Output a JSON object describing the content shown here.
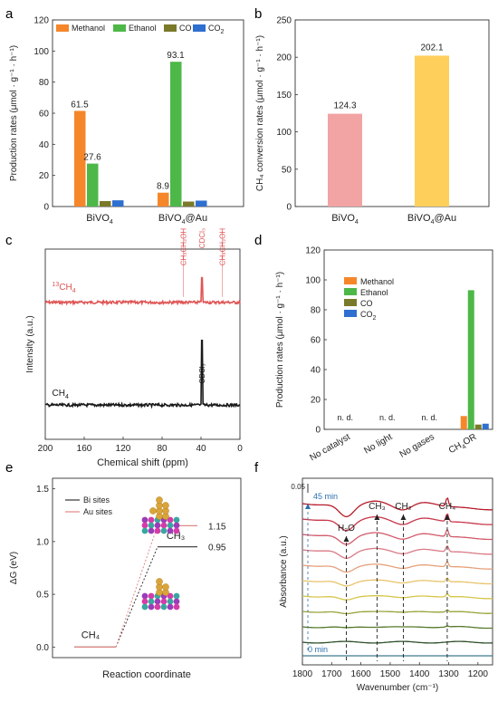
{
  "panel_labels": [
    "a",
    "b",
    "c",
    "d",
    "e",
    "f"
  ],
  "colors": {
    "methanol": "#f5872a",
    "ethanol": "#4db848",
    "co": "#7a7a2a",
    "co2": "#2f6fd0",
    "bivo4_bar": "#f2a3a3",
    "bivo4au_bar": "#ffcf5c",
    "nmr_13c": "#e05555",
    "nmr_12c": "#1a1a1a",
    "dg_bi": "#333333",
    "dg_au": "#e08888"
  },
  "chart_data": [
    {
      "id": "a",
      "type": "bar",
      "categories": [
        "BiVO4",
        "BiVO4@Au"
      ],
      "category_labels": [
        {
          "main": "BiVO",
          "sub": "4",
          "tail": ""
        },
        {
          "main": "BiVO",
          "sub": "4",
          "tail": "@Au"
        }
      ],
      "series": [
        {
          "name": "Methanol",
          "values": [
            61.5,
            8.9
          ],
          "labels": [
            "61.5",
            "8.9"
          ]
        },
        {
          "name": "Ethanol",
          "values": [
            27.6,
            93.1
          ],
          "labels": [
            "27.6",
            "93.1"
          ]
        },
        {
          "name": "CO",
          "values": [
            3.5,
            3.2
          ],
          "labels": [
            "",
            ""
          ]
        },
        {
          "name": "CO2",
          "values": [
            4.0,
            3.8
          ],
          "labels": [
            "",
            ""
          ]
        }
      ],
      "legend": [
        {
          "main": "Methanol",
          "sub": ""
        },
        {
          "main": "Ethanol",
          "sub": ""
        },
        {
          "main": "CO",
          "sub": ""
        },
        {
          "main": "CO",
          "sub": "2"
        }
      ],
      "ylabel": "Production rates (μmol · g⁻¹ · h⁻¹)",
      "ylim": [
        0,
        120
      ],
      "yticks": [
        0,
        20,
        40,
        60,
        80,
        100,
        120
      ]
    },
    {
      "id": "b",
      "type": "bar",
      "categories": [
        "BiVO4",
        "BiVO4@Au"
      ],
      "category_labels": [
        {
          "main": "BiVO",
          "sub": "4",
          "tail": ""
        },
        {
          "main": "BiVO",
          "sub": "4",
          "tail": "@Au"
        }
      ],
      "values": [
        124.3,
        202.1
      ],
      "labels": [
        "124.3",
        "202.1"
      ],
      "ylabel": "CH₄ conversion rates (μmol · g⁻¹ · h⁻¹)",
      "ylim": [
        0,
        250
      ],
      "yticks": [
        0,
        50,
        100,
        150,
        200,
        250
      ]
    },
    {
      "id": "c",
      "type": "line",
      "xlabel": "Chemical shift (ppm)",
      "ylabel": "Intensity (a.u.)",
      "xlim": [
        200,
        0
      ],
      "xticks": [
        200,
        160,
        120,
        80,
        40,
        0
      ],
      "series": [
        {
          "name": "13CH4",
          "label_sup": "13",
          "label_main": "CH",
          "label_sub": "4",
          "baseline": 0.72,
          "noise": 0.012,
          "peaks": [
            {
              "x": 39,
              "h": 0.13
            }
          ]
        },
        {
          "name": "CH4",
          "label_sup": "",
          "label_main": "CH",
          "label_sub": "4",
          "baseline": 0.18,
          "noise": 0.012,
          "peaks": [
            {
              "x": 39,
              "h": 0.34
            }
          ]
        }
      ],
      "annotations": [
        {
          "text": "CH₃CH₂OH",
          "x": 58,
          "series": 0
        },
        {
          "text": "CDCl₃",
          "x": 39,
          "series": 0
        },
        {
          "text": "CH₃CH₂OH",
          "x": 18,
          "series": 0
        },
        {
          "text": "CDCl₃",
          "x": 39,
          "series": 1
        }
      ]
    },
    {
      "id": "d",
      "type": "bar",
      "categories": [
        "No catalyst",
        "No light",
        "No gases",
        "CH4OR"
      ],
      "category_labels": [
        {
          "main": "No catalyst",
          "sub": "",
          "tail": ""
        },
        {
          "main": "No light",
          "sub": "",
          "tail": ""
        },
        {
          "main": "No gases",
          "sub": "",
          "tail": ""
        },
        {
          "main": "CH",
          "sub": "4",
          "tail": "OR"
        }
      ],
      "series": [
        {
          "name": "Methanol",
          "values": [
            0,
            0,
            0,
            8.9
          ]
        },
        {
          "name": "Ethanol",
          "values": [
            0,
            0,
            0,
            93.1
          ]
        },
        {
          "name": "CO",
          "values": [
            0,
            0,
            0,
            3.2
          ]
        },
        {
          "name": "CO2",
          "values": [
            0,
            0,
            0,
            3.8
          ]
        }
      ],
      "nd_text": "n. d.",
      "legend": [
        {
          "main": "Methanol",
          "sub": ""
        },
        {
          "main": "Ethanol",
          "sub": ""
        },
        {
          "main": "CO",
          "sub": ""
        },
        {
          "main": "CO",
          "sub": "2"
        }
      ],
      "ylabel": "Production rates (μmol · g⁻¹ · h⁻¹)",
      "ylim": [
        0,
        120
      ],
      "yticks": [
        0,
        20,
        40,
        60,
        80,
        100,
        120
      ]
    },
    {
      "id": "e",
      "type": "line",
      "xlabel": "Reaction coordinate",
      "ylabel": "ΔG (eV)",
      "ylim": [
        -0.1,
        1.6
      ],
      "yticks": [
        0.0,
        0.5,
        1.0,
        1.5
      ],
      "series": [
        {
          "name": "Bi sites",
          "points": [
            [
              0,
              0
            ],
            [
              1,
              0
            ],
            [
              2,
              0.95
            ],
            [
              3,
              0.95
            ]
          ]
        },
        {
          "name": "Au sites",
          "points": [
            [
              0,
              0
            ],
            [
              1,
              0
            ],
            [
              2,
              1.15
            ],
            [
              3,
              1.15
            ]
          ]
        }
      ],
      "state_labels": [
        "CH₄",
        "CH₃"
      ],
      "value_labels": [
        "1.15",
        "0.95"
      ]
    },
    {
      "id": "f",
      "type": "line",
      "xlabel": "Wavenumber (cm⁻¹)",
      "ylabel": "Absorbance (a.u.)",
      "xlim": [
        1800,
        1150
      ],
      "xticks": [
        1800,
        1700,
        1600,
        1500,
        1400,
        1300,
        1200
      ],
      "scale_bar": "0.05",
      "time_labels": [
        "45 min",
        "0 min"
      ],
      "curve_count": 10,
      "curve_colors": [
        "#b61d2b",
        "#c8364a",
        "#d25a6b",
        "#d97b86",
        "#e6a07a",
        "#e8c36a",
        "#d5c64a",
        "#9aa33a",
        "#567a2b",
        "#2d4f28"
      ],
      "band_labels": [
        {
          "text": "H₂O",
          "x": 1650
        },
        {
          "text": "CH₃",
          "x": 1545
        },
        {
          "text": "CH₂",
          "x": 1455
        },
        {
          "text": "CH₄",
          "x": 1305
        }
      ]
    }
  ]
}
